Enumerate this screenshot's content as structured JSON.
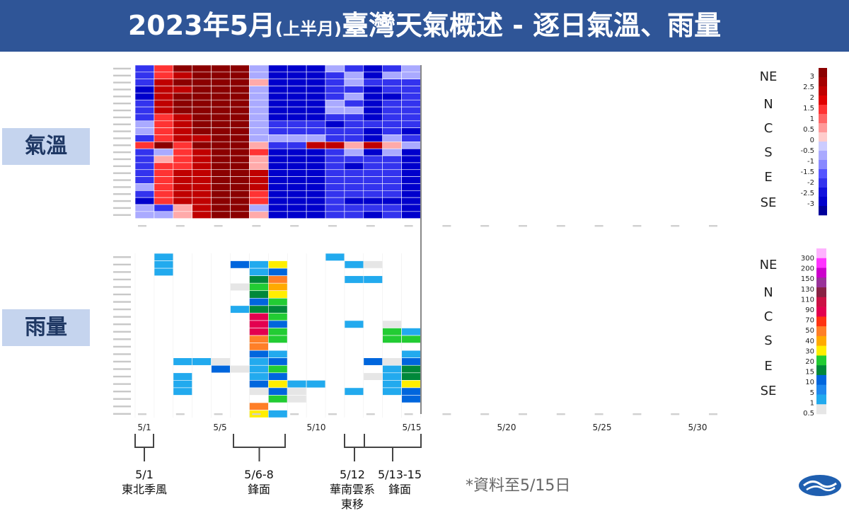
{
  "title": {
    "pre": "2023年5月",
    "small": "(上半月)",
    "post": "臺灣天氣概述 - 逐日氣溫、雨量"
  },
  "labels": {
    "temp": "氣溫",
    "rain": "雨量"
  },
  "regions": [
    "NE",
    "N",
    "C",
    "S",
    "E",
    "SE"
  ],
  "note": "*資料至5/15日",
  "x_ticks": [
    "5/1",
    "5/5",
    "5/10",
    "5/15",
    "5/20",
    "5/25",
    "5/30"
  ],
  "events": [
    {
      "date": "5/1",
      "desc": "東北季風",
      "desc2": ""
    },
    {
      "date": "5/6-8",
      "desc": "鋒面",
      "desc2": ""
    },
    {
      "date": "5/12",
      "desc": "華南雲系",
      "desc2": "東移"
    },
    {
      "date": "5/13-15",
      "desc": "鋒面",
      "desc2": ""
    }
  ],
  "colors": {
    "title_bg": "#2f5597",
    "label_bg": "#c5d4ee"
  },
  "chart_data": [
    {
      "type": "heatmap",
      "name": "氣溫",
      "x_range": [
        "5/1",
        "5/31"
      ],
      "days_with_data": 15,
      "stations": 22,
      "colorbar": {
        "ticks": [
          "3",
          "2.5",
          "2",
          "1.5",
          "1",
          "0.5",
          "0",
          "-0.5",
          "-1",
          "-1.5",
          "-2",
          "-2.5",
          "-3"
        ]
      },
      "values": [
        [
          -2,
          1,
          3,
          3,
          3,
          3,
          -1,
          -3,
          -3,
          -3,
          -1,
          -2,
          -3,
          -2,
          -1
        ],
        [
          -2,
          1,
          2,
          3,
          3,
          3,
          -1,
          -3,
          -3,
          -3,
          -2,
          -1,
          -3,
          -1,
          -1
        ],
        [
          -2,
          2,
          3,
          3,
          3,
          3,
          0,
          -3,
          -3,
          -3,
          -2,
          -1,
          -2,
          -2,
          -2
        ],
        [
          -3,
          2,
          2,
          3,
          3,
          3,
          -1,
          -3,
          -3,
          -3,
          -2,
          -2,
          -3,
          -2,
          -2
        ],
        [
          -3,
          2,
          3,
          3,
          3,
          3,
          -1,
          -3,
          -3,
          -3,
          -2,
          -1,
          -3,
          -3,
          -2
        ],
        [
          -2,
          2,
          3,
          3,
          3,
          3,
          -1,
          -3,
          -3,
          -3,
          -1,
          -2,
          -3,
          -2,
          -2
        ],
        [
          -2,
          2,
          3,
          3,
          3,
          3,
          -1,
          -3,
          -3,
          -3,
          -1,
          -1,
          -3,
          -2,
          -2
        ],
        [
          -2,
          1,
          2,
          3,
          3,
          3,
          -1,
          -3,
          -3,
          -3,
          -2,
          -2,
          -3,
          -2,
          -2
        ],
        [
          -1,
          1,
          2,
          3,
          3,
          3,
          -1,
          -2,
          -2,
          -2,
          -3,
          -2,
          -2,
          -2,
          -2
        ],
        [
          -1,
          1,
          2,
          3,
          3,
          3,
          -1,
          -2,
          -2,
          -2,
          -2,
          -2,
          -3,
          -2,
          -3
        ],
        [
          -2,
          1,
          2,
          2,
          3,
          3,
          -1,
          -1,
          -1,
          -1,
          -2,
          -2,
          -3,
          -1,
          -2
        ],
        [
          1,
          3,
          1,
          3,
          3,
          3,
          0,
          -2,
          -2,
          2,
          2,
          0,
          2,
          0,
          -1
        ],
        [
          -2,
          -1,
          1,
          2,
          3,
          3,
          1,
          -3,
          -3,
          -3,
          -2,
          -1,
          -3,
          -1,
          -3
        ],
        [
          -2,
          0,
          1,
          2,
          3,
          3,
          0,
          -3,
          -3,
          -3,
          -2,
          -2,
          -2,
          -2,
          -3
        ],
        [
          -2,
          1,
          1,
          2,
          3,
          3,
          0,
          -3,
          -3,
          -3,
          -2,
          -3,
          -2,
          -2,
          -3
        ],
        [
          -2,
          1,
          2,
          2,
          3,
          3,
          2,
          -3,
          -3,
          -3,
          -2,
          -2,
          -2,
          -2,
          -3
        ],
        [
          -2,
          1,
          2,
          2,
          3,
          3,
          2,
          -3,
          -3,
          -3,
          -2,
          -2,
          -2,
          -2,
          -3
        ],
        [
          -1,
          1,
          2,
          2,
          3,
          3,
          2,
          -3,
          -3,
          -3,
          -2,
          -2,
          -2,
          -2,
          -3
        ],
        [
          -2,
          1,
          2,
          2,
          3,
          3,
          1,
          -3,
          -3,
          -3,
          -2,
          -2,
          -2,
          -2,
          -3
        ],
        [
          -3,
          1,
          2,
          2,
          3,
          3,
          1,
          -3,
          -3,
          -3,
          -2,
          -3,
          -3,
          -3,
          -3
        ],
        [
          -1,
          -2,
          0,
          2,
          3,
          3,
          -1,
          -3,
          -3,
          -3,
          -2,
          -2,
          -2,
          -2,
          -3
        ],
        [
          -1,
          -1,
          0,
          2,
          3,
          3,
          0,
          -3,
          -3,
          -3,
          -2,
          -2,
          -3,
          -2,
          -3
        ]
      ]
    },
    {
      "type": "heatmap",
      "name": "雨量",
      "x_range": [
        "5/1",
        "5/31"
      ],
      "days_with_data": 15,
      "stations": 22,
      "colorbar": {
        "ticks": [
          "300",
          "200",
          "150",
          "130",
          "110",
          "90",
          "70",
          "50",
          "40",
          "30",
          "20",
          "15",
          "10",
          "5",
          "1",
          "0.5"
        ]
      },
      "values": [
        [
          0,
          5,
          0,
          0,
          0,
          0,
          0,
          0,
          0,
          0,
          5,
          0,
          0,
          0,
          0
        ],
        [
          0,
          5,
          0,
          0,
          0,
          10,
          5,
          30,
          0,
          0,
          0,
          5,
          0.5,
          0,
          0
        ],
        [
          0,
          5,
          0,
          0,
          0,
          0,
          5,
          10,
          0,
          0,
          0,
          0,
          0,
          0,
          0
        ],
        [
          0,
          0,
          0,
          0,
          0,
          0,
          15,
          50,
          0,
          0,
          0,
          5,
          5,
          0,
          0
        ],
        [
          0,
          0,
          0,
          0,
          0,
          0.5,
          20,
          40,
          0,
          0,
          0,
          0,
          0,
          0,
          0
        ],
        [
          0,
          0,
          0,
          0,
          0,
          0,
          15,
          30,
          0,
          0,
          0,
          0,
          0,
          0,
          0
        ],
        [
          0,
          0,
          0,
          0,
          0,
          0,
          10,
          20,
          0,
          0,
          0,
          0,
          0,
          0,
          0
        ],
        [
          0,
          0,
          0,
          0,
          0,
          5,
          15,
          15,
          0,
          0,
          0,
          0,
          0,
          0,
          0
        ],
        [
          0,
          0,
          0,
          0,
          0,
          0,
          90,
          20,
          0,
          0,
          0,
          0,
          0,
          0,
          0
        ],
        [
          0,
          0,
          0,
          0,
          0,
          0,
          90,
          10,
          0,
          0,
          0,
          5,
          0,
          0.5,
          0
        ],
        [
          0,
          0,
          0,
          0,
          0,
          0,
          90,
          20,
          0,
          0,
          0,
          0,
          0,
          20,
          5
        ],
        [
          0,
          0,
          0,
          0,
          0,
          0,
          50,
          20,
          0,
          0,
          0,
          0,
          0,
          20,
          20
        ],
        [
          0,
          0,
          0,
          0,
          0,
          0,
          50,
          0,
          0,
          0,
          0,
          0,
          0,
          0,
          0
        ],
        [
          0,
          0,
          0,
          0,
          0,
          0,
          10,
          5,
          0,
          0,
          0,
          0,
          0,
          0,
          5
        ],
        [
          0,
          0,
          5,
          5,
          0.5,
          0,
          5,
          10,
          0,
          0,
          0,
          0,
          10,
          0.5,
          10
        ],
        [
          0,
          0,
          0,
          0,
          10,
          0.5,
          5,
          20,
          0,
          0,
          0,
          0,
          0,
          5,
          15
        ],
        [
          0,
          0,
          5,
          0,
          0,
          0,
          5,
          10,
          0,
          0,
          0,
          0,
          0.5,
          5,
          15
        ],
        [
          0,
          0,
          5,
          0,
          0,
          0,
          10,
          30,
          5,
          5,
          0,
          0,
          0,
          5,
          30
        ],
        [
          0,
          0,
          5,
          0,
          0,
          0,
          0.5,
          10,
          0.5,
          0,
          0,
          5,
          0,
          5,
          10
        ],
        [
          0,
          0,
          0,
          0,
          0,
          0,
          0,
          20,
          0.5,
          0,
          0,
          0,
          0,
          0,
          10
        ],
        [
          0,
          0,
          0,
          0,
          0,
          0,
          50,
          0,
          0,
          0,
          0,
          0,
          0,
          0,
          0
        ],
        [
          0,
          0,
          0,
          0,
          0,
          0,
          30,
          5,
          0,
          0,
          0,
          0,
          0,
          0,
          0
        ]
      ]
    }
  ]
}
